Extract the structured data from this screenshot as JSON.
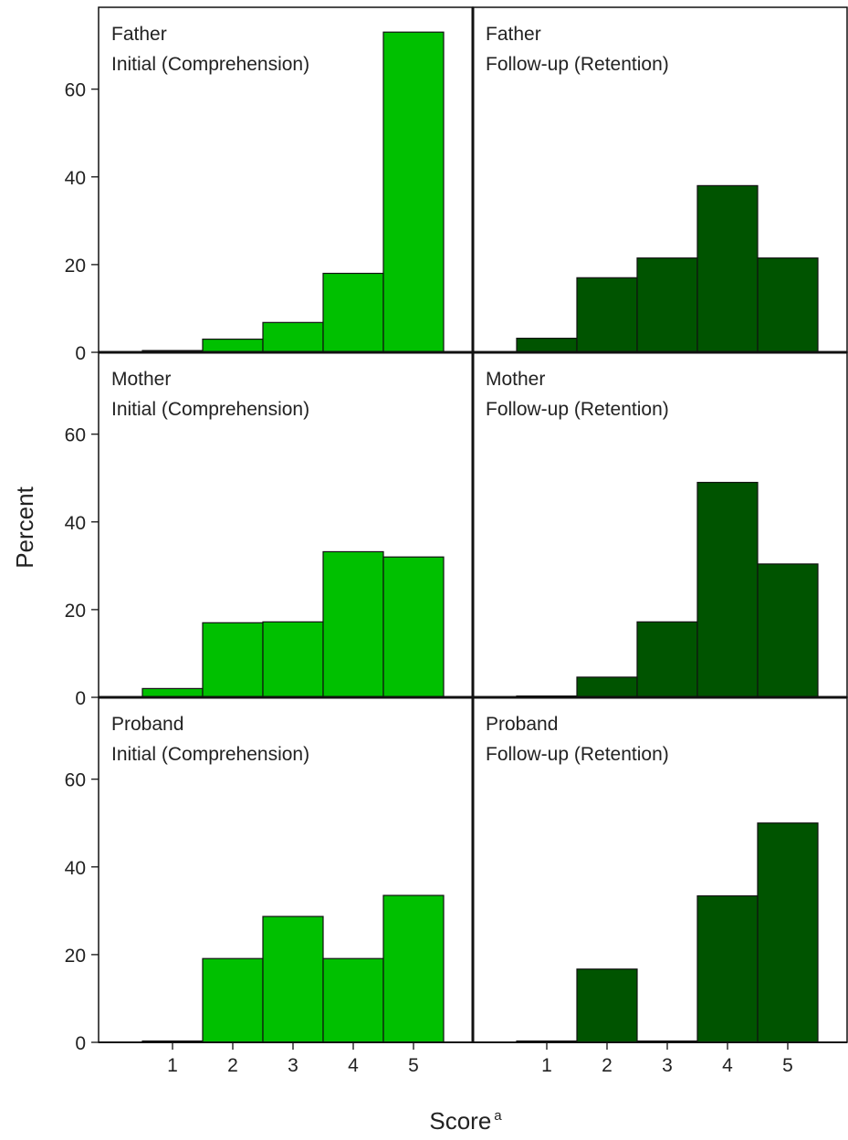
{
  "chart_data": {
    "type": "bar",
    "categories": [
      "1",
      "2",
      "3",
      "4",
      "5"
    ],
    "xlabel": "Score",
    "xlabel_superscript": "a",
    "ylabel": "Percent",
    "ylim": [
      0,
      72
    ],
    "yticks": [
      0,
      20,
      40,
      60
    ],
    "colors": {
      "initial": "#00c000",
      "followup": "#005400",
      "edge": "#111111"
    },
    "grid": false,
    "panels": [
      {
        "row": 0,
        "col": 0,
        "group": "Father",
        "phase": "Initial (Comprehension)",
        "color": "initial",
        "values": [
          0.4,
          3,
          6.8,
          18,
          73
        ]
      },
      {
        "row": 0,
        "col": 1,
        "group": "Father",
        "phase": "Follow-up (Retention)",
        "color": "followup",
        "values": [
          3.2,
          17,
          21.5,
          38,
          21.5
        ]
      },
      {
        "row": 1,
        "col": 0,
        "group": "Mother",
        "phase": "Initial (Comprehension)",
        "color": "initial",
        "values": [
          2,
          17,
          17.2,
          33.2,
          32
        ]
      },
      {
        "row": 1,
        "col": 1,
        "group": "Mother",
        "phase": "Follow-up (Retention)",
        "color": "followup",
        "values": [
          0.3,
          4.6,
          17.2,
          49,
          30.4
        ]
      },
      {
        "row": 2,
        "col": 0,
        "group": "Proband",
        "phase": "Initial (Comprehension)",
        "color": "initial",
        "values": [
          0.3,
          19.1,
          28.7,
          19.1,
          33.5
        ]
      },
      {
        "row": 2,
        "col": 1,
        "group": "Proband",
        "phase": "Follow-up (Retention)",
        "color": "followup",
        "values": [
          0.3,
          16.7,
          0.3,
          33.4,
          50
        ]
      }
    ]
  }
}
